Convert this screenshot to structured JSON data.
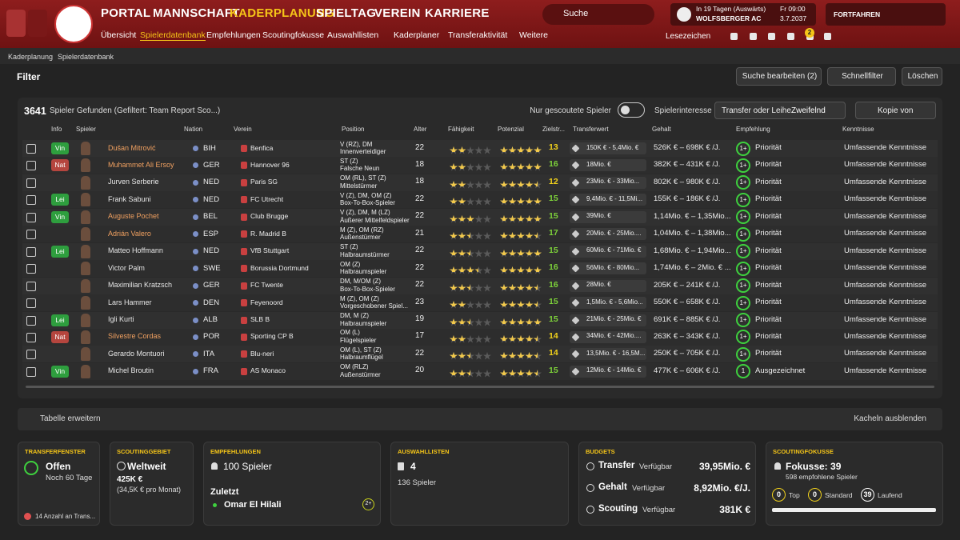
{
  "header": {
    "nav": [
      {
        "label": "PORTAL",
        "color": "#ffffff"
      },
      {
        "label": "MANNSCHAFT",
        "color": "#ffffff"
      },
      {
        "label": "KADERPLANUNG",
        "color": "#f5c518"
      },
      {
        "label": "SPIELTAG",
        "color": "#ffffff"
      },
      {
        "label": "VEREIN",
        "color": "#ffffff"
      },
      {
        "label": "KARRIERE",
        "color": "#ffffff"
      }
    ],
    "subnav": [
      {
        "label": "Übersicht",
        "color": "#ffffff"
      },
      {
        "label": "Spielerdatenbank",
        "color": "#f5c518"
      },
      {
        "label": "Empfehlungen",
        "color": "#ffffff"
      },
      {
        "label": "Scoutingfokusse",
        "color": "#ffffff"
      },
      {
        "label": "Auswahllisten",
        "color": "#ffffff"
      },
      {
        "label": "Kaderplaner",
        "color": "#ffffff"
      },
      {
        "label": "Transferaktivität",
        "color": "#ffffff"
      },
      {
        "label": "Weitere",
        "color": "#ffffff"
      }
    ],
    "search": "Suche",
    "match": {
      "when": "In 19 Tagen (Auswärts)",
      "opponent": "WOLFSBERGER AC",
      "time": "Fr 09:00",
      "date": "3.7.2037"
    },
    "continue": "FORTFAHREN",
    "bookmarks": "Lesezeichen",
    "notifications": "2"
  },
  "breadcrumb": [
    "Kaderplanung",
    "Spielerdatenbank"
  ],
  "filter": {
    "title": "Filter",
    "buttons": [
      "Suche bearbeiten (2)",
      "Schnellfilter",
      "Löschen"
    ]
  },
  "table": {
    "count": "3641",
    "found": "Spieler Gefunden (Gefiltert: Team Report Sco...)",
    "scouted_only": "Nur gescoutete Spieler",
    "interest_label": "Spielerinteresse",
    "interest_value": "Transfer oder Leihe",
    "interest_level": "Zweifelnd",
    "copy": "Kopie von",
    "columns": [
      "Info",
      "Spieler",
      "Nation",
      "Verein",
      "Position",
      "Alter",
      "Fähigkeit",
      "Potenzial",
      "Zielstr...",
      "Transferwert",
      "Gehalt",
      "Empfehlung",
      "Kenntnisse"
    ],
    "rows": [
      {
        "info": "Vin",
        "info_color": "#2e9e3e",
        "name": "Dušan Mitrović",
        "name_color": "#f0a060",
        "nation": "BIH",
        "club": "Benfica",
        "position": [
          "V (RZ), DM",
          "Innenverteidiger"
        ],
        "age": 22,
        "ability": 2,
        "potential": 5,
        "role_rating": 13,
        "rating_color": "#f2d21b",
        "transfer_value": "150K € - 5,4Mio. €",
        "wage": "526K € – 698K € /J.",
        "recommendation": "1+",
        "recommendation_text": "Priorität",
        "knowledge": "Umfassende Kenntnisse"
      },
      {
        "info": "Nat",
        "info_color": "#b5453e",
        "name": "Muhammet Ali Ersoy",
        "name_color": "#f0a060",
        "nation": "GER",
        "club": "Hannover 96",
        "position": [
          "ST (Z)",
          "Falsche Neun"
        ],
        "age": 18,
        "ability": 2,
        "potential": 5,
        "role_rating": 16,
        "rating_color": "#7dd13a",
        "transfer_value": "18Mio. €",
        "wage": "382K € – 431K € /J.",
        "recommendation": "1+",
        "recommendation_text": "Priorität",
        "knowledge": "Umfassende Kenntnisse"
      },
      {
        "name": "Jurven Serberie",
        "name_color": "#e6e6e6",
        "nation": "NED",
        "club": "Paris SG",
        "position": [
          "OM (RL), ST (Z)",
          "Mittelstürmer"
        ],
        "age": 18,
        "ability": 2,
        "potential": 4.5,
        "role_rating": 12,
        "rating_color": "#f2d21b",
        "transfer_value": "23Mio. € - 33Mio...",
        "wage": "802K € – 980K € /J.",
        "recommendation": "1+",
        "recommendation_text": "Priorität",
        "knowledge": "Umfassende Kenntnisse"
      },
      {
        "info": "Lei",
        "info_color": "#2e9e3e",
        "name": "Frank Sabuni",
        "name_color": "#e6e6e6",
        "nation": "NED",
        "club": "FC Utrecht",
        "position": [
          "V (Z), DM, OM (Z)",
          "Box-To-Box-Spieler"
        ],
        "age": 22,
        "ability": 2,
        "potential": 5,
        "role_rating": 15,
        "rating_color": "#7dd13a",
        "transfer_value": "9,4Mio. € - 11,5Mi...",
        "wage": "155K € – 186K € /J.",
        "recommendation": "1+",
        "recommendation_text": "Priorität",
        "knowledge": "Umfassende Kenntnisse"
      },
      {
        "info": "Vin",
        "info_color": "#2e9e3e",
        "name": "Auguste Pochet",
        "name_color": "#f0a060",
        "nation": "BEL",
        "club": "Club Brugge",
        "position": [
          "V (Z), DM, M (LZ)",
          "Äußerer Mittelfeldspieler"
        ],
        "age": 22,
        "ability": 3,
        "potential": 5,
        "role_rating": 15,
        "rating_color": "#7dd13a",
        "transfer_value": "39Mio. €",
        "wage": "1,14Mio. € – 1,35Mio...",
        "recommendation": "1+",
        "recommendation_text": "Priorität",
        "knowledge": "Umfassende Kenntnisse"
      },
      {
        "name": "Adrián Valero",
        "name_color": "#f0a060",
        "nation": "ESP",
        "club": "R. Madrid B",
        "position": [
          "M (Z), OM (RZ)",
          "Außenstürmer"
        ],
        "age": 21,
        "ability": 2.5,
        "potential": 4.5,
        "role_rating": 17,
        "rating_color": "#7dd13a",
        "transfer_value": "20Mio. € - 25Mio....",
        "wage": "1,04Mio. € – 1,38Mio...",
        "recommendation": "1+",
        "recommendation_text": "Priorität",
        "knowledge": "Umfassende Kenntnisse"
      },
      {
        "info": "Lei",
        "info_color": "#2e9e3e",
        "name": "Matteo Hoffmann",
        "name_color": "#e6e6e6",
        "nation": "NED",
        "club": "VfB Stuttgart",
        "position": [
          "ST (Z)",
          "Halbraumstürmer"
        ],
        "age": 22,
        "ability": 2.5,
        "potential": 5,
        "role_rating": 15,
        "rating_color": "#7dd13a",
        "transfer_value": "60Mio. € - 71Mio. €",
        "wage": "1,68Mio. € – 1,94Mio...",
        "recommendation": "1+",
        "recommendation_text": "Priorität",
        "knowledge": "Umfassende Kenntnisse"
      },
      {
        "name": "Victor Palm",
        "name_color": "#e6e6e6",
        "nation": "SWE",
        "club": "Borussia Dortmund",
        "position": [
          "OM (Z)",
          "Halbraumspieler"
        ],
        "age": 22,
        "ability": 3.5,
        "potential": 5,
        "role_rating": 16,
        "rating_color": "#7dd13a",
        "transfer_value": "56Mio. € - 80Mio...",
        "wage": "1,74Mio. € – 2Mio. € ...",
        "recommendation": "1+",
        "recommendation_text": "Priorität",
        "knowledge": "Umfassende Kenntnisse"
      },
      {
        "name": "Maximilian Kratzsch",
        "name_color": "#e6e6e6",
        "nation": "GER",
        "club": "FC Twente",
        "position": [
          "DM, M/OM (Z)",
          "Box-To-Box-Spieler"
        ],
        "age": 22,
        "ability": 2.5,
        "potential": 4.5,
        "role_rating": 16,
        "rating_color": "#7dd13a",
        "transfer_value": "28Mio. €",
        "wage": "205K € – 241K € /J.",
        "recommendation": "1+",
        "recommendation_text": "Priorität",
        "knowledge": "Umfassende Kenntnisse"
      },
      {
        "name": "Lars Hammer",
        "name_color": "#e6e6e6",
        "nation": "DEN",
        "club": "Feyenoord",
        "position": [
          "M (Z), OM (Z)",
          "Vorgeschobener Spiel..."
        ],
        "age": 23,
        "ability": 2,
        "potential": 4.5,
        "role_rating": 15,
        "rating_color": "#7dd13a",
        "transfer_value": "1,5Mio. € - 5,6Mio...",
        "wage": "550K € – 658K € /J.",
        "recommendation": "1+",
        "recommendation_text": "Priorität",
        "knowledge": "Umfassende Kenntnisse"
      },
      {
        "info": "Lei",
        "info_color": "#2e9e3e",
        "name": "Igli Kurti",
        "name_color": "#e6e6e6",
        "nation": "ALB",
        "club": "SLB B",
        "position": [
          "DM, M (Z)",
          "Halbraumspieler"
        ],
        "age": 19,
        "ability": 2.5,
        "potential": 5,
        "role_rating": 15,
        "rating_color": "#7dd13a",
        "transfer_value": "21Mio. € - 25Mio. €",
        "wage": "691K € – 885K € /J.",
        "recommendation": "1+",
        "recommendation_text": "Priorität",
        "knowledge": "Umfassende Kenntnisse"
      },
      {
        "info": "Nat",
        "info_color": "#b5453e",
        "name": "Silvestre Cordas",
        "name_color": "#f0a060",
        "nation": "POR",
        "club": "Sporting CP B",
        "position": [
          "OM (L)",
          "Flügelspieler"
        ],
        "age": 17,
        "ability": 2,
        "potential": 4.5,
        "role_rating": 14,
        "rating_color": "#f2d21b",
        "transfer_value": "34Mio. € - 42Mio....",
        "wage": "263K € – 343K € /J.",
        "recommendation": "1+",
        "recommendation_text": "Priorität",
        "knowledge": "Umfassende Kenntnisse"
      },
      {
        "name": "Gerardo Montuori",
        "name_color": "#e6e6e6",
        "nation": "ITA",
        "club": "Blu-neri",
        "position": [
          "OM (L), ST (Z)",
          "Halbraumflügel"
        ],
        "age": 22,
        "ability": 2.5,
        "potential": 4.5,
        "role_rating": 14,
        "rating_color": "#f2d21b",
        "transfer_value": "13,5Mio. € - 16,5M...",
        "wage": "250K € – 705K € /J.",
        "recommendation": "1+",
        "recommendation_text": "Priorität",
        "knowledge": "Umfassende Kenntnisse"
      },
      {
        "info": "Vin",
        "info_color": "#2e9e3e",
        "name": "Michel Broutin",
        "name_color": "#e6e6e6",
        "nation": "FRA",
        "club": "AS Monaco",
        "position": [
          "OM (RLZ)",
          "Außenstürmer"
        ],
        "age": 20,
        "ability": 2.5,
        "potential": 4.5,
        "role_rating": 15,
        "rating_color": "#7dd13a",
        "transfer_value": "12Mio. € - 14Mio. €",
        "wage": "477K € – 606K € /J.",
        "recommendation": "1",
        "recommendation_text": "Ausgezeichnet",
        "knowledge": "Umfassende Kenntnisse"
      }
    ],
    "expand": "Tabelle erweitern",
    "hide_tiles": "Kacheln ausblenden"
  },
  "cards": {
    "transfer_window": {
      "title": "TRANSFERFENSTER",
      "status": "Offen",
      "remaining": "Noch 60 Tage",
      "footer": "14 Anzahl an Trans..."
    },
    "scouting_area": {
      "title": "SCOUTINGGEBIET",
      "area": "Weltweit",
      "cost": "425K €",
      "monthly": "(34,5K € pro Monat)"
    },
    "recommendations": {
      "title": "EMPFEHLUNGEN",
      "count": "100 Spieler",
      "latest_label": "Zuletzt",
      "latest": "Omar El Hilali",
      "latest_badge": "2+"
    },
    "shortlists": {
      "title": "AUSWAHLLISTEN",
      "count": "4",
      "players": "136 Spieler"
    },
    "budgets": {
      "title": "BUDGETS",
      "items": [
        {
          "label": "Transfer",
          "note": "Verfügbar",
          "value": "39,95Mio. €"
        },
        {
          "label": "Gehalt",
          "note": "Verfügbar",
          "value": "8,92Mio. €/J."
        },
        {
          "label": "Scouting",
          "note": "Verfügbar",
          "value": "381K €"
        }
      ]
    },
    "scouting_focus": {
      "title": "SCOUTINGFOKUSSE",
      "focus": "Fokusse: 39",
      "recommended": "598 empfohlene Spieler",
      "stats": [
        {
          "value": "0",
          "label": "Top",
          "color": "#f2d21b"
        },
        {
          "value": "0",
          "label": "Standard",
          "color": "#f2d21b"
        },
        {
          "value": "39",
          "label": "Laufend",
          "color": "#ffffff"
        }
      ]
    }
  }
}
